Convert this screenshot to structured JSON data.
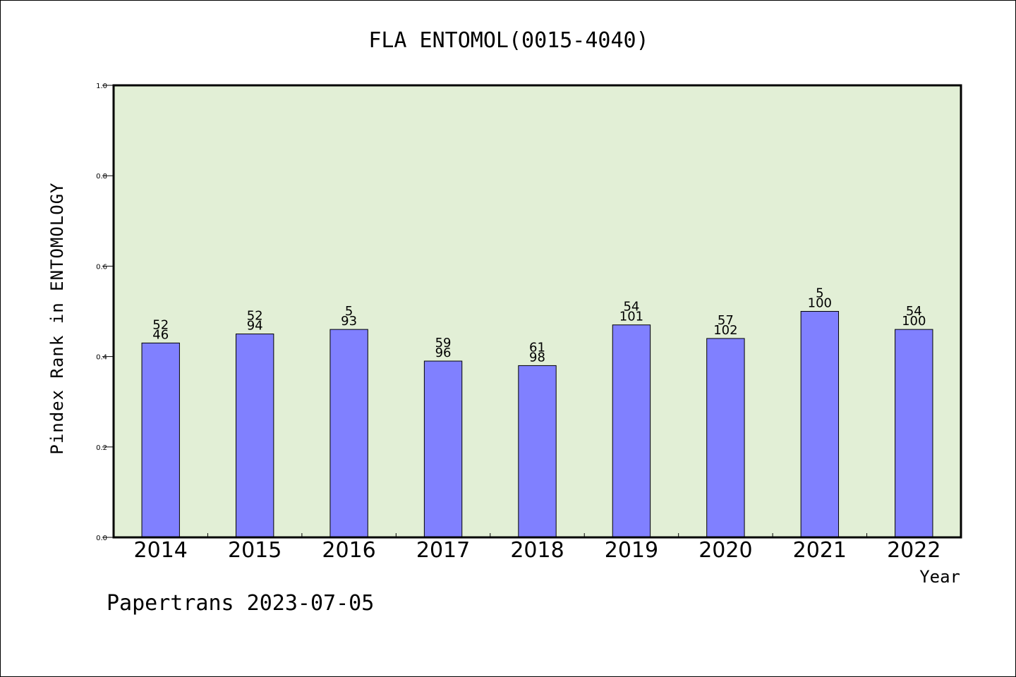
{
  "chart_data": {
    "type": "bar",
    "title": "FLA ENTOMOL(0015-4040)",
    "ylabel": "Pindex Rank in ENTOMOLOGY",
    "xlabel": "Year",
    "ylim": [
      0,
      1.0
    ],
    "yticks": [
      "0.0",
      "0.2",
      "0.4",
      "0.6",
      "0.8",
      "1.0"
    ],
    "categories": [
      "2014",
      "2015",
      "2016",
      "2017",
      "2018",
      "2019",
      "2020",
      "2021",
      "2022"
    ],
    "values": [
      0.43,
      0.45,
      0.46,
      0.39,
      0.38,
      0.47,
      0.44,
      0.5,
      0.46
    ],
    "rank_labels": [
      "52",
      "52",
      "5",
      "59",
      "61",
      "54",
      "57",
      "5",
      "54"
    ],
    "total_labels": [
      "46",
      "94",
      "93",
      "96",
      "98",
      "101",
      "102",
      "100",
      "100"
    ],
    "grid": false,
    "colors": {
      "plot_background": "#e2efd6",
      "bar_fill": "#8080ff",
      "bar_stroke": "#000000"
    }
  },
  "footer": {
    "text": "Papertrans 2023-07-05"
  }
}
